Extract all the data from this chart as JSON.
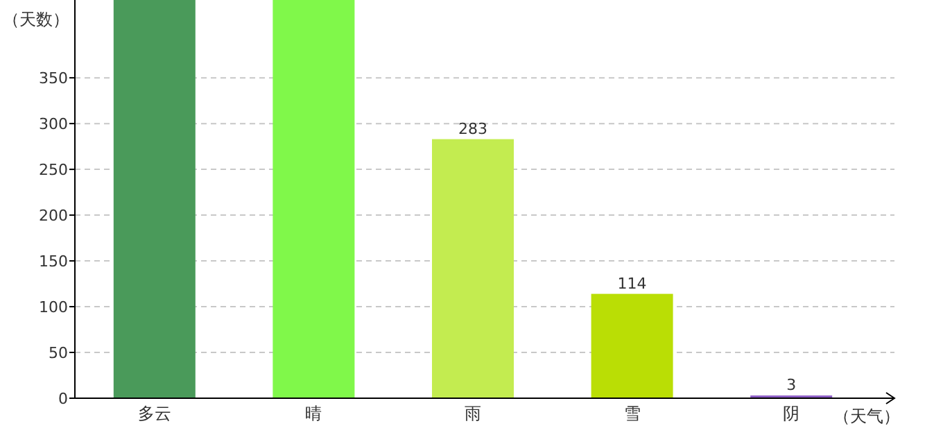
{
  "chart_data": {
    "type": "bar",
    "xlabel": "（天气）",
    "ylabel": "（天数）",
    "categories": [
      "多云",
      "晴",
      "雨",
      "雪",
      "阴"
    ],
    "values": [
      435,
      435,
      283,
      114,
      3
    ],
    "colors": [
      "#4a9a5a",
      "#80f84a",
      "#c3ec50",
      "#bade05",
      "#8e5fc6"
    ],
    "value_labels": [
      null,
      null,
      "283",
      "114",
      "3"
    ],
    "ylim": [
      0,
      435
    ],
    "yticks": [
      0,
      50,
      100,
      150,
      200,
      250,
      300,
      350
    ],
    "grid": "y"
  }
}
